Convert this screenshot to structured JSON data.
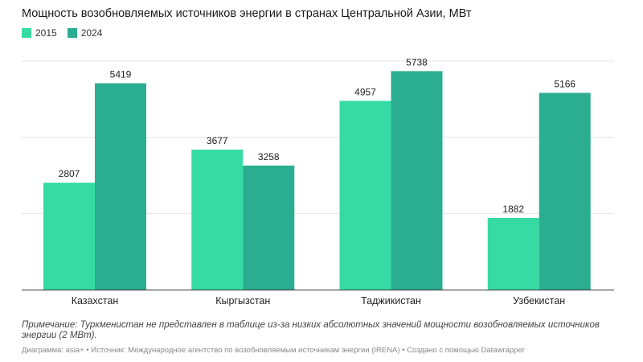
{
  "chart_data": {
    "type": "bar",
    "title": "Мощность возобновляемых источников энергии в странах Центральной Азии, МВт",
    "categories": [
      "Казахстан",
      "Кыргызстан",
      "Таджикистан",
      "Узбекистан"
    ],
    "series": [
      {
        "name": "2015",
        "values": [
          2807,
          3677,
          4957,
          1882
        ],
        "color": "#36dba4"
      },
      {
        "name": "2024",
        "values": [
          5419,
          3258,
          5738,
          5166
        ],
        "color": "#2aad91"
      }
    ],
    "ylim": [
      0,
      6000
    ],
    "grid": true,
    "legend_position": "top-left"
  },
  "note": "Примечание: Туркменистан не представлен в таблице из-за низких абсолютных значений мощности возобновляемых источников энергии (2 МВт).",
  "source": "Диаграмма: asia+ • Источник: Международное агентство по возобновляемым источникам энергии (IRENA) • Создано с помощью Datawrapper"
}
